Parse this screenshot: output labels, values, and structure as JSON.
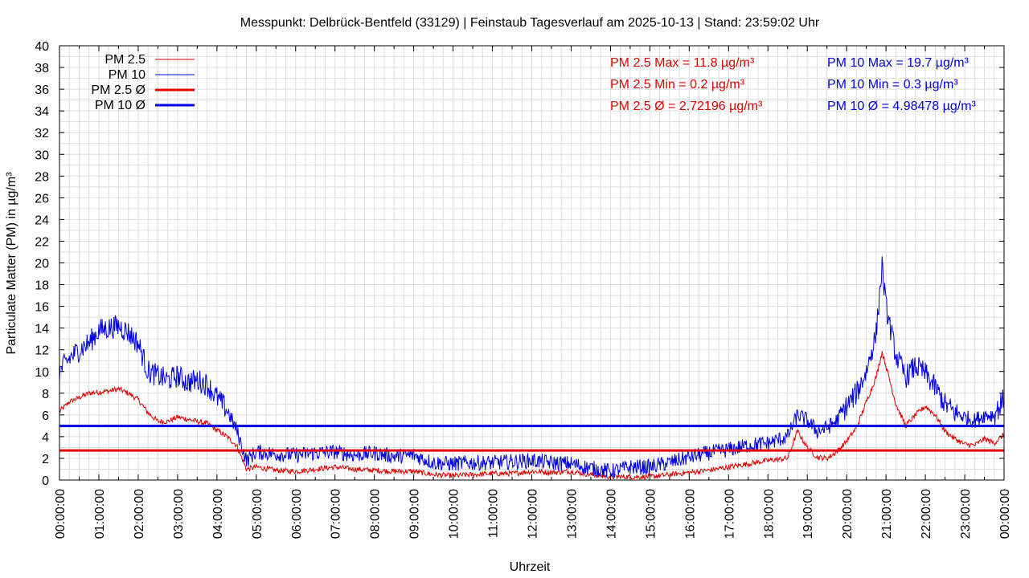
{
  "title": "Messpunkt: Delbrück-Bentfeld (33129) | Feinstaub Tagesverlauf am 2025-10-13 | Stand: 23:59:02 Uhr",
  "chart_data": {
    "type": "line",
    "xlabel": "Uhrzeit",
    "ylabel": "Particulate Matter (PM) in µg/m³",
    "xlim": [
      "00:00:00",
      "24:00:00"
    ],
    "ylim": [
      0,
      40
    ],
    "grid": true,
    "legend_position": "top-left",
    "y_ticks": [
      0,
      2,
      4,
      6,
      8,
      10,
      12,
      14,
      16,
      18,
      20,
      22,
      24,
      26,
      28,
      30,
      32,
      34,
      36,
      38,
      40
    ],
    "x_tick_labels": [
      "00:00:00",
      "01:00:00",
      "02:00:00",
      "03:00:00",
      "04:00:00",
      "05:00:00",
      "06:00:00",
      "07:00:00",
      "08:00:00",
      "09:00:00",
      "10:00:00",
      "11:00:00",
      "12:00:00",
      "13:00:00",
      "14:00:00",
      "15:00:00",
      "16:00:00",
      "17:00:00",
      "18:00:00",
      "19:00:00",
      "20:00:00",
      "21:00:00",
      "22:00:00",
      "23:00:00",
      "00:00:00"
    ],
    "x_hours": [
      0,
      0.25,
      0.5,
      0.75,
      1,
      1.25,
      1.5,
      1.75,
      2,
      2.25,
      2.5,
      2.75,
      3,
      3.25,
      3.5,
      3.75,
      4,
      4.25,
      4.5,
      4.75,
      5,
      5.5,
      6,
      6.5,
      7,
      7.5,
      8,
      8.5,
      9,
      9.5,
      10,
      10.5,
      11,
      11.5,
      12,
      12.5,
      13,
      13.5,
      14,
      14.5,
      15,
      15.5,
      16,
      16.5,
      17,
      17.5,
      18,
      18.5,
      18.75,
      19,
      19.25,
      19.5,
      19.75,
      20,
      20.25,
      20.5,
      20.75,
      20.9,
      21,
      21.25,
      21.5,
      21.75,
      22,
      22.25,
      22.5,
      22.75,
      23,
      23.25,
      23.5,
      23.75,
      24
    ],
    "series": [
      {
        "name": "PM 2.5",
        "color": "#e00000",
        "style": "thin",
        "values": [
          6.3,
          7.2,
          7.6,
          8.0,
          8.1,
          8.2,
          8.4,
          8.0,
          7.4,
          6.2,
          5.4,
          5.4,
          5.8,
          5.6,
          5.4,
          5.2,
          4.6,
          4.0,
          3.2,
          1.0,
          1.2,
          0.9,
          0.8,
          1.0,
          1.2,
          1.0,
          0.9,
          0.8,
          0.8,
          0.5,
          0.4,
          0.5,
          0.6,
          0.6,
          0.8,
          0.7,
          0.8,
          0.5,
          0.3,
          0.3,
          0.3,
          0.5,
          0.7,
          0.9,
          1.2,
          1.5,
          1.8,
          2.0,
          4.5,
          3.0,
          2.1,
          2.0,
          2.6,
          3.6,
          4.8,
          7.2,
          9.5,
          11.8,
          10.5,
          7.0,
          5.0,
          6.0,
          6.8,
          6.0,
          4.5,
          3.8,
          3.3,
          3.2,
          3.8,
          3.4,
          4.2
        ]
      },
      {
        "name": "PM 10",
        "color": "#0000e0",
        "style": "thin",
        "values": [
          10.0,
          11.2,
          12.0,
          12.6,
          13.8,
          14.0,
          14.2,
          13.6,
          12.6,
          10.0,
          9.6,
          9.2,
          9.6,
          9.0,
          9.2,
          8.8,
          7.6,
          6.5,
          4.6,
          1.8,
          2.6,
          2.4,
          2.3,
          2.5,
          2.6,
          2.3,
          2.5,
          2.2,
          2.3,
          1.6,
          1.5,
          1.6,
          1.6,
          1.7,
          1.8,
          1.6,
          1.5,
          1.1,
          0.8,
          1.2,
          1.2,
          1.6,
          2.1,
          2.5,
          2.8,
          3.2,
          3.4,
          4.0,
          6.0,
          5.5,
          4.5,
          4.8,
          5.5,
          6.8,
          8.0,
          10.0,
          13.5,
          19.7,
          16.0,
          11.5,
          9.5,
          10.5,
          9.8,
          8.5,
          7.0,
          6.2,
          5.8,
          5.5,
          6.0,
          6.0,
          7.5
        ]
      },
      {
        "name": "PM 2.5 Ø",
        "color": "#e00000",
        "style": "thick",
        "constant": 2.72196
      },
      {
        "name": "PM 10 Ø",
        "color": "#0000e0",
        "style": "thick",
        "constant": 4.98478
      }
    ],
    "stats_pm25": [
      "PM 2.5 Max = 11.8 µg/m³",
      "PM 2.5 Min = 0.2 µg/m³",
      "PM 2.5 Ø = 2.72196 µg/m³"
    ],
    "stats_pm10": [
      "PM 10 Max = 19.7 µg/m³",
      "PM 10 Min = 0.3 µg/m³",
      "PM 10 Ø = 4.98478 µg/m³"
    ]
  }
}
